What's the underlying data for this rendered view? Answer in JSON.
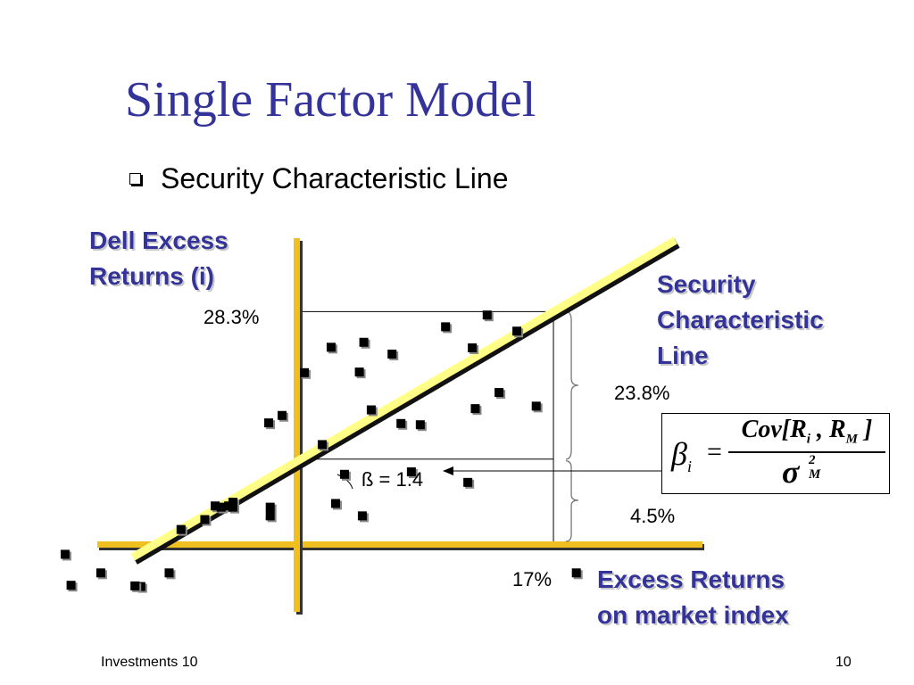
{
  "slide": {
    "title": "Single Factor Model",
    "bullet": "Security Characteristic Line",
    "footer_left": "Investments 10",
    "page_number": "10"
  },
  "labels": {
    "y_axis_line1": "Dell Excess",
    "y_axis_line2": "Returns (i)",
    "x_axis_line1": "Excess Returns",
    "x_axis_line2": "on market index",
    "scl_line1": "Security",
    "scl_line2": "Characteristic",
    "scl_line3": "Line",
    "dell_top_value": "28.3%",
    "spread_value": "23.8%",
    "intercept_value": "4.5%",
    "market_value": "17%",
    "beta_label": "ß = 1.4"
  },
  "formula": {
    "lhs_symbol": "β",
    "lhs_sub": "i",
    "equals": "=",
    "num_prefix": "Cov[",
    "num_r1": "R",
    "num_r1_sub": "i",
    "num_sep": " , ",
    "num_r2": "R",
    "num_r2_sub": "M",
    "num_suffix": " ]",
    "den_symbol": "σ",
    "den_sup": "2",
    "den_sub": "M"
  },
  "colors": {
    "title": "#333399",
    "axis": "#f0c020",
    "line_fill": "#ffff88",
    "line_edge": "#000000",
    "point": "#000000"
  },
  "chart_data": {
    "type": "scatter",
    "xlabel": "Excess Returns on market index",
    "ylabel": "Dell Excess Returns (i)",
    "points": [
      {
        "x": -6.4,
        "y": -5.4
      },
      {
        "x": -5.7,
        "y": -3.2
      },
      {
        "x": -5.3,
        "y": -3.4
      },
      {
        "x": -4.8,
        "y": -3.2
      },
      {
        "x": -4.5,
        "y": -2.6
      },
      {
        "x": -4.5,
        "y": -3.4
      },
      {
        "x": -2.0,
        "y": -3.4
      },
      {
        "x": -2.0,
        "y": -4.8
      },
      {
        "x": -2.1,
        "y": 10.2
      },
      {
        "x": -1.2,
        "y": 11.4
      },
      {
        "x": 0.3,
        "y": 18.3
      },
      {
        "x": 1.5,
        "y": 6.7
      },
      {
        "x": 2.1,
        "y": 22.4
      },
      {
        "x": 2.4,
        "y": -2.8
      },
      {
        "x": 3.0,
        "y": 1.9
      },
      {
        "x": 4.0,
        "y": 18.4
      },
      {
        "x": 4.2,
        "y": -4.8
      },
      {
        "x": 4.3,
        "y": 23.2
      },
      {
        "x": 4.8,
        "y": 12.3
      },
      {
        "x": 6.2,
        "y": 21.3
      },
      {
        "x": 6.8,
        "y": 10.1
      },
      {
        "x": 7.5,
        "y": 2.3
      },
      {
        "x": 8.1,
        "y": 9.9
      },
      {
        "x": 9.8,
        "y": 25.7
      },
      {
        "x": 11.3,
        "y": 0.6
      },
      {
        "x": 11.6,
        "y": 22.3
      },
      {
        "x": 11.8,
        "y": 12.5
      },
      {
        "x": 12.6,
        "y": 27.6
      },
      {
        "x": 13.4,
        "y": 15.1
      },
      {
        "x": 14.6,
        "y": 25.0
      },
      {
        "x": 15.9,
        "y": 12.9
      },
      {
        "x": 18.6,
        "y": -14.0
      },
      {
        "x": -8.0,
        "y": -7.0
      },
      {
        "x": -8.8,
        "y": -14.0
      },
      {
        "x": -10.7,
        "y": -16.2
      },
      {
        "x": -15.4,
        "y": -16.0
      },
      {
        "x": -13.4,
        "y": -14.0
      },
      {
        "x": -11.1,
        "y": -16.1
      },
      {
        "x": -15.8,
        "y": -11.0
      }
    ],
    "regression": {
      "intercept": 4.5,
      "slope": 1.4
    },
    "annotations": [
      {
        "x": 17,
        "y": 28.3,
        "text": "28.3%"
      },
      {
        "x": 0,
        "y": 4.5,
        "text": "4.5%"
      },
      {
        "text": "23.8%"
      },
      {
        "text": "17%"
      },
      {
        "text": "ß = 1.4"
      }
    ]
  }
}
